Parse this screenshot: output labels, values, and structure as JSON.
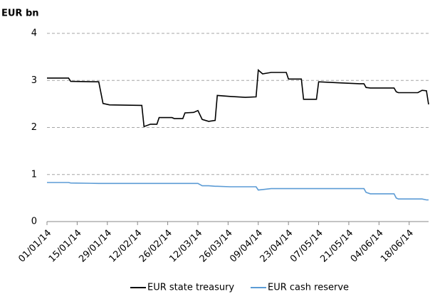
{
  "chart_data": {
    "type": "line",
    "y_axis_title": "EUR bn",
    "x": [
      "01/01/14",
      "11/01/14",
      "12/01/14",
      "25/01/14",
      "27/01/14",
      "30/01/14",
      "14/02/14",
      "15/02/14",
      "18/02/14",
      "21/02/14",
      "22/02/14",
      "28/02/14",
      "01/03/14",
      "05/03/14",
      "06/03/14",
      "10/03/14",
      "12/03/14",
      "14/03/14",
      "17/03/14",
      "20/03/14",
      "21/03/14",
      "27/03/14",
      "03/04/14",
      "08/04/14",
      "09/04/14",
      "11/04/14",
      "15/04/14",
      "22/04/14",
      "23/04/14",
      "29/04/14",
      "30/04/14",
      "06/05/14",
      "07/05/14",
      "16/05/14",
      "26/05/14",
      "28/05/14",
      "29/05/14",
      "31/05/14",
      "11/06/14",
      "12/06/14",
      "13/06/14",
      "22/06/14",
      "24/06/14",
      "26/06/14",
      "27/06/14"
    ],
    "series": [
      {
        "name": "EUR state treasury",
        "color": "#000000",
        "values": [
          3.05,
          3.05,
          2.98,
          2.97,
          2.51,
          2.48,
          2.47,
          2.02,
          2.07,
          2.07,
          2.21,
          2.21,
          2.19,
          2.19,
          2.31,
          2.32,
          2.36,
          2.17,
          2.13,
          2.15,
          2.68,
          2.66,
          2.64,
          2.65,
          3.22,
          3.14,
          3.17,
          3.17,
          3.03,
          3.03,
          2.6,
          2.6,
          2.97,
          2.95,
          2.93,
          2.93,
          2.85,
          2.84,
          2.84,
          2.76,
          2.74,
          2.74,
          2.79,
          2.78,
          2.49
        ]
      },
      {
        "name": "EUR cash reserve",
        "color": "#5b9bd5",
        "values": [
          0.83,
          0.83,
          0.82,
          0.81,
          0.81,
          0.81,
          0.81,
          0.81,
          0.81,
          0.81,
          0.81,
          0.81,
          0.81,
          0.81,
          0.81,
          0.81,
          0.81,
          0.76,
          0.76,
          0.75,
          0.75,
          0.74,
          0.74,
          0.74,
          0.67,
          0.68,
          0.7,
          0.7,
          0.7,
          0.7,
          0.7,
          0.7,
          0.7,
          0.7,
          0.7,
          0.7,
          0.62,
          0.59,
          0.59,
          0.5,
          0.48,
          0.48,
          0.48,
          0.46,
          0.46
        ]
      }
    ],
    "xlim": [
      "01/01/14",
      "27/06/14"
    ],
    "xticks": [
      "01/01/14",
      "15/01/14",
      "29/01/14",
      "12/02/14",
      "26/02/14",
      "12/03/14",
      "26/03/14",
      "09/04/14",
      "23/04/14",
      "07/05/14",
      "21/05/14",
      "04/06/14",
      "18/06/14"
    ],
    "ylim": [
      0,
      4
    ],
    "yticks": [
      0,
      1,
      2,
      3,
      4
    ],
    "grid": true,
    "legend": "bottom"
  }
}
